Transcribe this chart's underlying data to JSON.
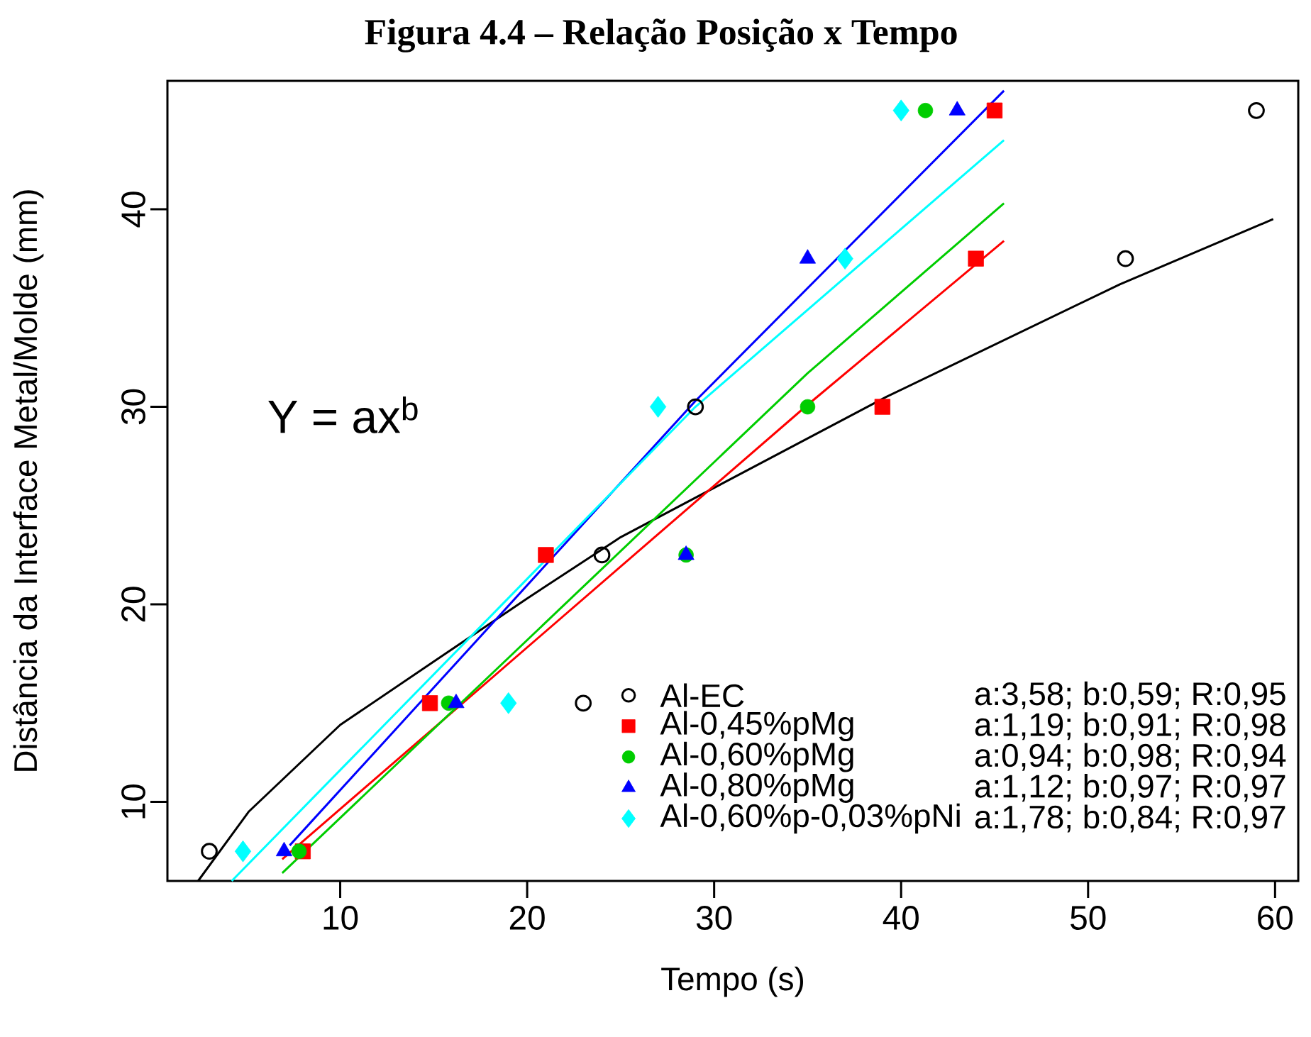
{
  "chart_data": {
    "type": "scatter",
    "title": "Figura 4.4 – Relação Posição x Tempo",
    "xlabel": "Tempo (s)",
    "ylabel": "Distância da Interface Metal/Molde (mm)",
    "xlim": [
      0.76,
      61.24
    ],
    "ylim": [
      6,
      46.5
    ],
    "xticks": [
      10,
      20,
      30,
      40,
      50,
      60
    ],
    "yticks": [
      10,
      20,
      30,
      40
    ],
    "grid": false,
    "legend": "bottom right",
    "annotations": [
      "Y = ax$^{b}$",
      "a:3,58; b:0,59; R:0,95",
      "a:1,19; b:0,91; R:0,98",
      "a:0,94; b:0,98; R:0,94",
      "a:1,12; b:0,97; R:0,97",
      "a:1,78; b:0,84; R:0,97"
    ],
    "series": [
      {
        "name": "Al-EC",
        "marker": "circle",
        "color": "#000000",
        "x": [
          3,
          23,
          24,
          29,
          52,
          59
        ],
        "values": [
          7.5,
          15,
          22.5,
          30,
          37.5,
          45
        ]
      },
      {
        "name": "Al-0,45%pMg",
        "marker": "square",
        "color": "#ff0000",
        "x": [
          8,
          14.8,
          21,
          39,
          44,
          45
        ],
        "values": [
          7.5,
          15,
          22.5,
          30,
          37.5,
          45
        ]
      },
      {
        "name": "Al-0,60%pMg",
        "marker": "circle",
        "color": "#00cd00",
        "x": [
          7.8,
          15.8,
          28.5,
          35,
          41.3
        ],
        "values": [
          7.5,
          15,
          22.5,
          30,
          45
        ]
      },
      {
        "name": "Al-0,80%pMg",
        "marker": "triangle",
        "color": "#0000ff",
        "x": [
          7,
          16.2,
          28.5,
          35,
          43
        ],
        "values": [
          7.5,
          15,
          22.5,
          37.5,
          45
        ]
      },
      {
        "name": "Al-0,60%p-0,03%pNi",
        "marker": "diamond",
        "color": "#00ffff",
        "x": [
          4.8,
          19,
          27,
          37,
          40
        ],
        "values": [
          7.5,
          15,
          30,
          37.5,
          45
        ]
      },
      {
        "type": "line",
        "marker": "none",
        "color": "#000000",
        "x": [
          2.4,
          5.1,
          10,
          15,
          20,
          25,
          29.2,
          39.2,
          51.7,
          59.9
        ],
        "values": [
          6,
          9.5,
          13.9,
          17.1,
          20.3,
          23.4,
          25.5,
          30.5,
          36.2,
          39.5
        ]
      },
      {
        "type": "line",
        "marker": "none",
        "color": "#ff0000",
        "x": [
          6.9,
          35,
          45.5
        ],
        "values": [
          7.1,
          30.1,
          38.4
        ]
      },
      {
        "type": "line",
        "marker": "none",
        "color": "#00cd00",
        "x": [
          6.9,
          35,
          45.5
        ],
        "values": [
          6.4,
          31.7,
          40.3
        ]
      },
      {
        "type": "line",
        "marker": "none",
        "color": "#0000ff",
        "x": [
          7.3,
          29,
          45.5
        ],
        "values": [
          7.8,
          30.3,
          46.0
        ]
      },
      {
        "type": "line",
        "marker": "none",
        "color": "#00ffff",
        "x": [
          4.2,
          29,
          45.5
        ],
        "values": [
          6.0,
          30.0,
          43.5
        ]
      }
    ]
  }
}
